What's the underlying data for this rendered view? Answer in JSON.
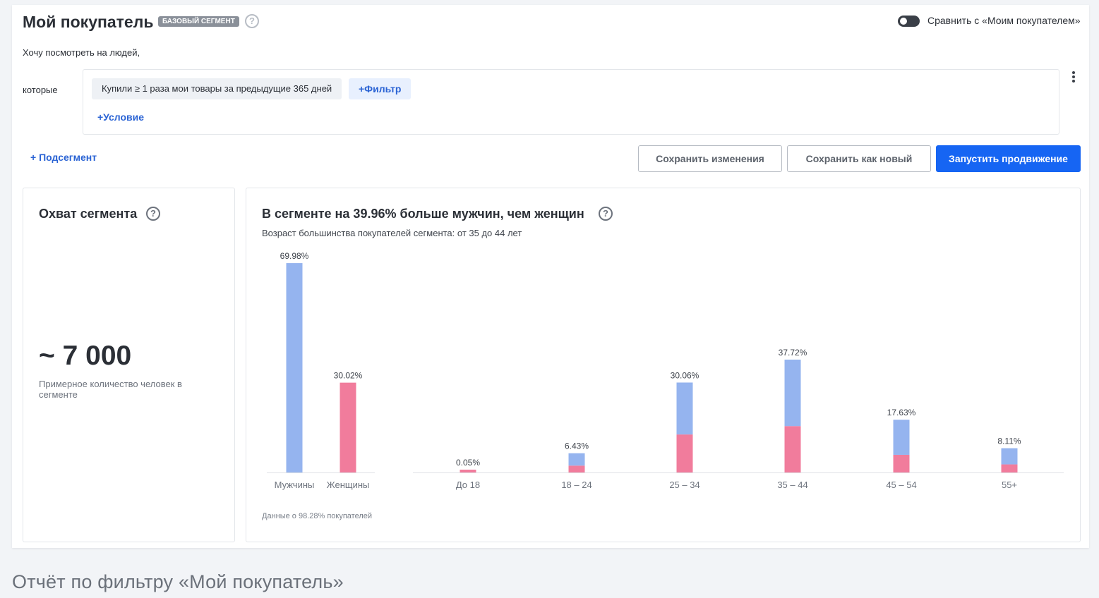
{
  "header": {
    "title": "Мой покупатель",
    "badge": "БАЗОВЫЙ СЕГМЕНТ",
    "compare_label": "Сравнить с «Моим покупателем»",
    "compare_enabled": false
  },
  "filter": {
    "intro": "Хочу посмотреть на людей,",
    "which_label": "которые",
    "chip_text": "Купили ≥ 1 раза мои товары за предыдущие 365 дней",
    "add_filter": "+Фильтр",
    "add_condition": "+Условие"
  },
  "actions": {
    "subsegment": "+ Подсегмент",
    "save_changes": "Сохранить изменения",
    "save_as_new": "Сохранить как новый",
    "launch": "Запустить продвижение"
  },
  "reach": {
    "title": "Охват сегмента",
    "value": "~ 7 000",
    "description": "Примерное количество человек в сегменте"
  },
  "demographics": {
    "title": "В сегменте на 39.96% больше мужчин, чем женщин",
    "subtitle": "Возраст большинства покупателей сегмента: от 35 до 44 лет",
    "footnote": "Данные о 98.28% покупателей"
  },
  "colors": {
    "male": "#95b4ef",
    "female": "#f17c9c",
    "accent": "#1665f3",
    "link": "#2a63d4"
  },
  "chart_data": [
    {
      "type": "bar",
      "categories": [
        "Мужчины",
        "Женщины"
      ],
      "values": [
        69.98,
        30.02
      ],
      "value_labels": [
        "69.98%",
        "30.02%"
      ],
      "colors": [
        "#95b4ef",
        "#f17c9c"
      ],
      "ylim": [
        0,
        70
      ]
    },
    {
      "type": "bar",
      "stacked": true,
      "categories": [
        "До 18",
        "18 – 24",
        "25 – 34",
        "35 – 44",
        "45 – 54",
        "55+"
      ],
      "totals": [
        0.05,
        6.43,
        30.06,
        37.72,
        17.63,
        8.11
      ],
      "total_labels": [
        "0.05%",
        "6.43%",
        "30.06%",
        "37.72%",
        "17.63%",
        "8.11%"
      ],
      "series": [
        {
          "values": [
            0.05,
            2.3,
            12.7,
            15.5,
            5.9,
            2.7
          ],
          "color": "#f17c9c"
        },
        {
          "values": [
            0.0,
            4.13,
            17.36,
            22.22,
            11.73,
            5.41
          ],
          "color": "#95b4ef"
        }
      ],
      "ylim": [
        0,
        70
      ]
    }
  ],
  "caption": "Отчёт по фильтру «Мой покупатель»"
}
